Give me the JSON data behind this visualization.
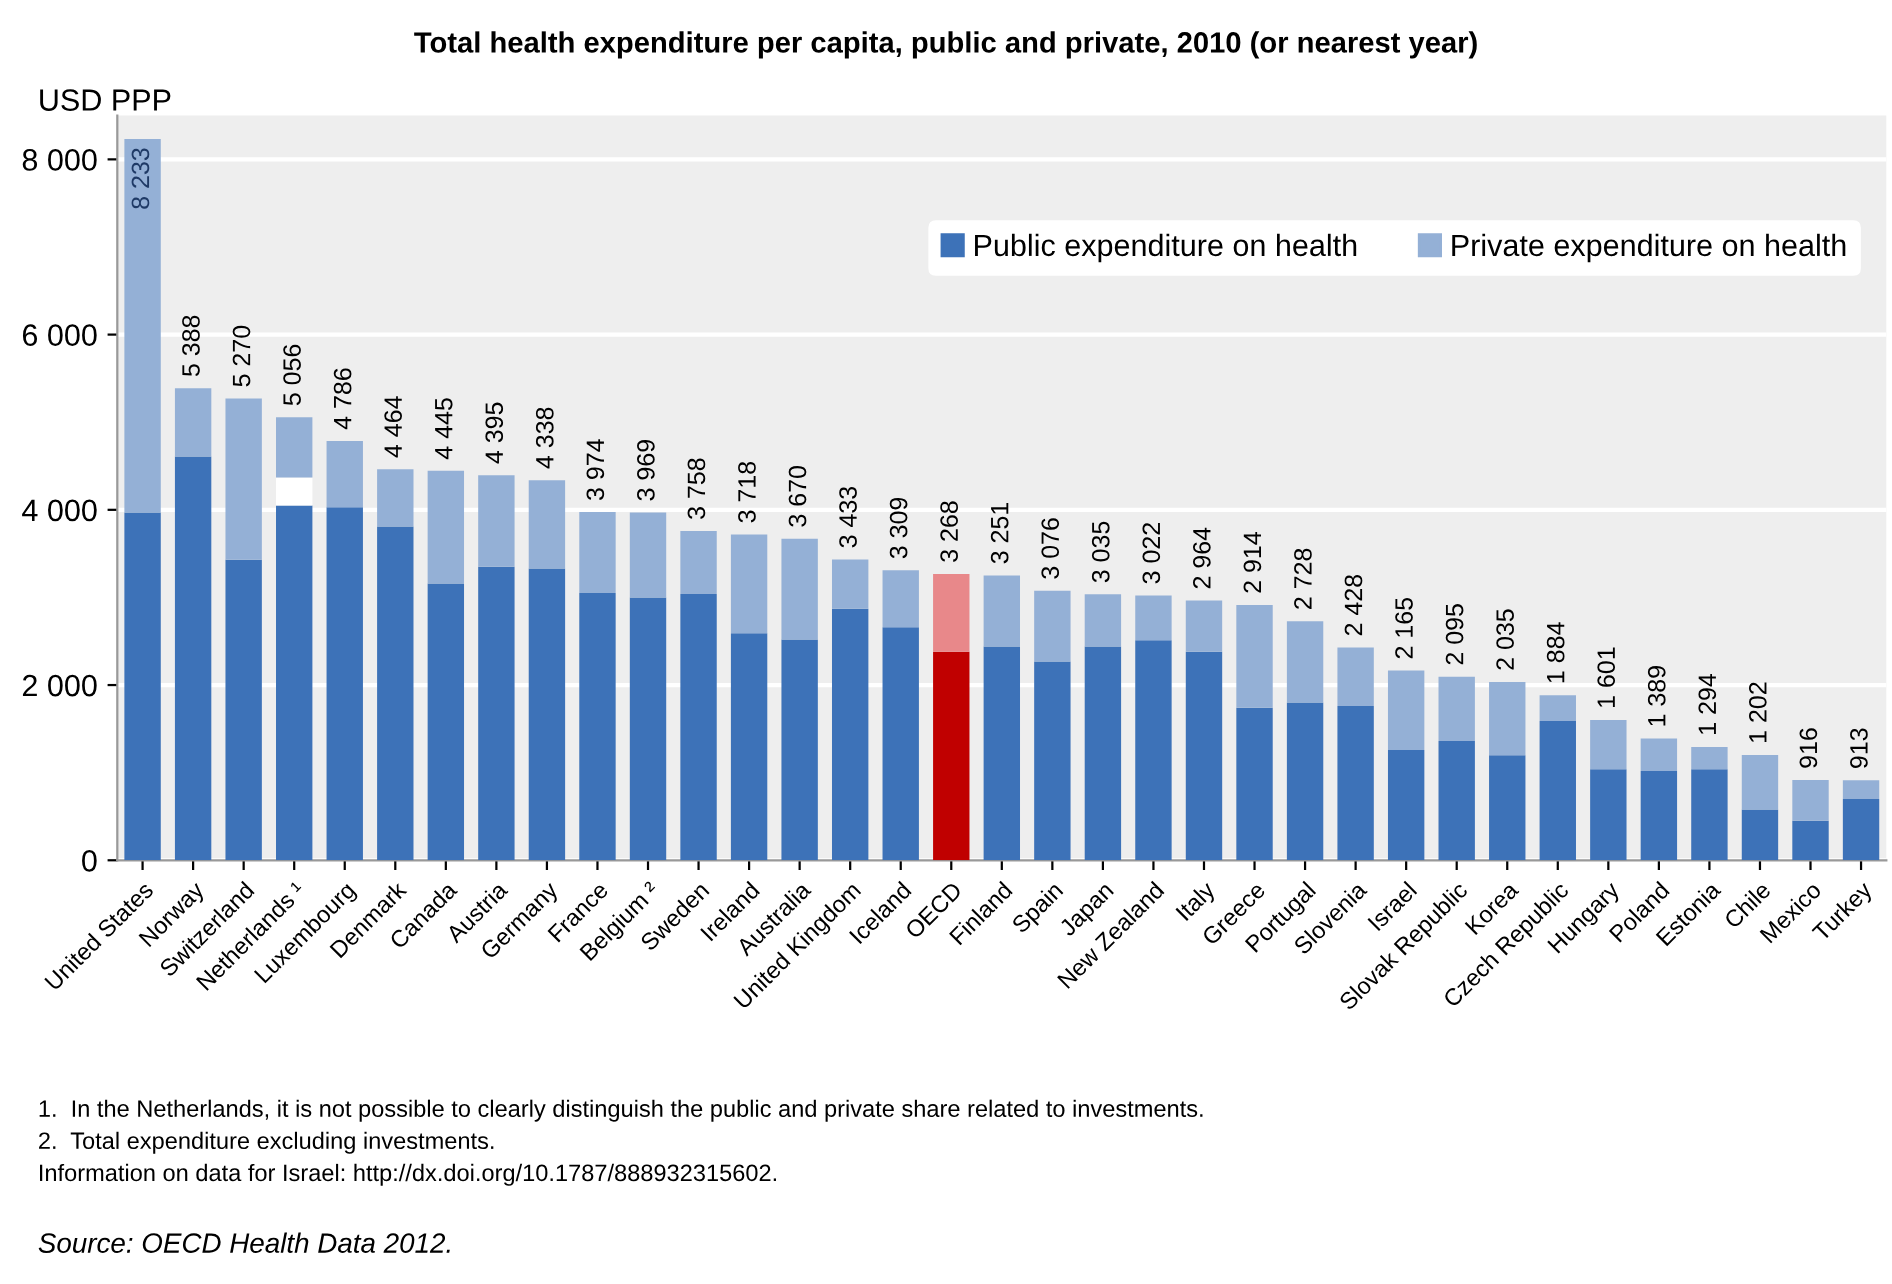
{
  "chart_data": {
    "type": "bar",
    "stacked": true,
    "title": "Total health expenditure per capita, public and private, 2010 (or nearest year)",
    "ylabel": "USD PPP",
    "categories": [
      "United States",
      "Norway",
      "Switzerland",
      "Netherlands ¹",
      "Luxembourg",
      "Denmark",
      "Canada",
      "Austria",
      "Germany",
      "France",
      "Belgium ²",
      "Sweden",
      "Ireland",
      "Australia",
      "United Kingdom",
      "Iceland",
      "OECD",
      "Finland",
      "Spain",
      "Japan",
      "New Zealand",
      "Italy",
      "Greece",
      "Portugal",
      "Slovenia",
      "Israel",
      "Slovak Republic",
      "Korea",
      "Czech Republic",
      "Hungary",
      "Poland",
      "Estonia",
      "Chile",
      "Mexico",
      "Turkey"
    ],
    "series": [
      {
        "name": "Public expenditure on health",
        "color": "#3d72b8",
        "colors": [
          "#3d72b8",
          "#3d72b8",
          "#3d72b8",
          "#3d72b8",
          "#3d72b8",
          "#3d72b8",
          "#3d72b8",
          "#3d72b8",
          "#3d72b8",
          "#3d72b8",
          "#3d72b8",
          "#3d72b8",
          "#3d72b8",
          "#3d72b8",
          "#3d72b8",
          "#3d72b8",
          "#c00000",
          "#3d72b8",
          "#3d72b8",
          "#3d72b8",
          "#3d72b8",
          "#3d72b8",
          "#3d72b8",
          "#3d72b8",
          "#3d72b8",
          "#3d72b8",
          "#3d72b8",
          "#3d72b8",
          "#3d72b8",
          "#3d72b8",
          "#3d72b8",
          "#3d72b8",
          "#3d72b8",
          "#3d72b8",
          "#3d72b8"
        ],
        "values": [
          3970,
          4610,
          3430,
          4050,
          4030,
          3810,
          3160,
          3350,
          3330,
          3050,
          3000,
          3040,
          2590,
          2520,
          2870,
          2660,
          2380,
          2440,
          2270,
          2440,
          2510,
          2380,
          1740,
          1800,
          1760,
          1260,
          1360,
          1200,
          1590,
          1040,
          1020,
          1040,
          580,
          450,
          700
        ]
      },
      {
        "color": "#ffffff",
        "values": [
          0,
          0,
          0,
          320,
          0,
          0,
          0,
          0,
          0,
          0,
          0,
          0,
          0,
          0,
          0,
          0,
          0,
          0,
          0,
          0,
          0,
          0,
          0,
          0,
          0,
          0,
          0,
          0,
          0,
          0,
          0,
          0,
          0,
          0,
          0
        ]
      },
      {
        "name": "Private expenditure on health",
        "color": "#94b0d6",
        "colors": [
          "#94b0d6",
          "#94b0d6",
          "#94b0d6",
          "#94b0d6",
          "#94b0d6",
          "#94b0d6",
          "#94b0d6",
          "#94b0d6",
          "#94b0d6",
          "#94b0d6",
          "#94b0d6",
          "#94b0d6",
          "#94b0d6",
          "#94b0d6",
          "#94b0d6",
          "#94b0d6",
          "#e8888a",
          "#94b0d6",
          "#94b0d6",
          "#94b0d6",
          "#94b0d6",
          "#94b0d6",
          "#94b0d6",
          "#94b0d6",
          "#94b0d6",
          "#94b0d6",
          "#94b0d6",
          "#94b0d6",
          "#94b0d6",
          "#94b0d6",
          "#94b0d6",
          "#94b0d6",
          "#94b0d6",
          "#94b0d6",
          "#94b0d6"
        ],
        "values": [
          4263,
          778,
          1840,
          686,
          756,
          654,
          1285,
          1045,
          1008,
          924,
          969,
          718,
          1128,
          1150,
          563,
          649,
          888,
          811,
          806,
          595,
          512,
          584,
          1174,
          928,
          668,
          905,
          735,
          835,
          294,
          561,
          369,
          254,
          622,
          466,
          213
        ]
      }
    ],
    "totals": [
      "8 233",
      "5 388",
      "5 270",
      "5 056",
      "4 786",
      "4 464",
      "4 445",
      "4 395",
      "4 338",
      "3 974",
      "3 969",
      "3 758",
      "3 718",
      "3 670",
      "3 433",
      "3 309",
      "3 268",
      "3 251",
      "3 076",
      "3 035",
      "3 022",
      "2 964",
      "2 914",
      "2 728",
      "2 428",
      "2 165",
      "2 095",
      "2 035",
      "1 884",
      "1 601",
      "1 389",
      "1 294",
      "1 202",
      "916",
      "913"
    ],
    "ylim": [
      0,
      8500
    ],
    "yticks": [
      {
        "value": 0,
        "label": "0"
      },
      {
        "value": 2000,
        "label": "2 000"
      },
      {
        "value": 4000,
        "label": "4 000"
      },
      {
        "value": 6000,
        "label": "6 000"
      },
      {
        "value": 8000,
        "label": "8 000"
      }
    ],
    "grid": "y",
    "legend": "top right",
    "annotations": [
      "1.  In the Netherlands, it is not possible to clearly distinguish the public and private share related to investments.",
      "2.  Total expenditure excluding investments.",
      "Information on data for Israel: http://dx.doi.org/10.1787/888932315602.",
      "Source: OECD Health Data 2012."
    ]
  }
}
